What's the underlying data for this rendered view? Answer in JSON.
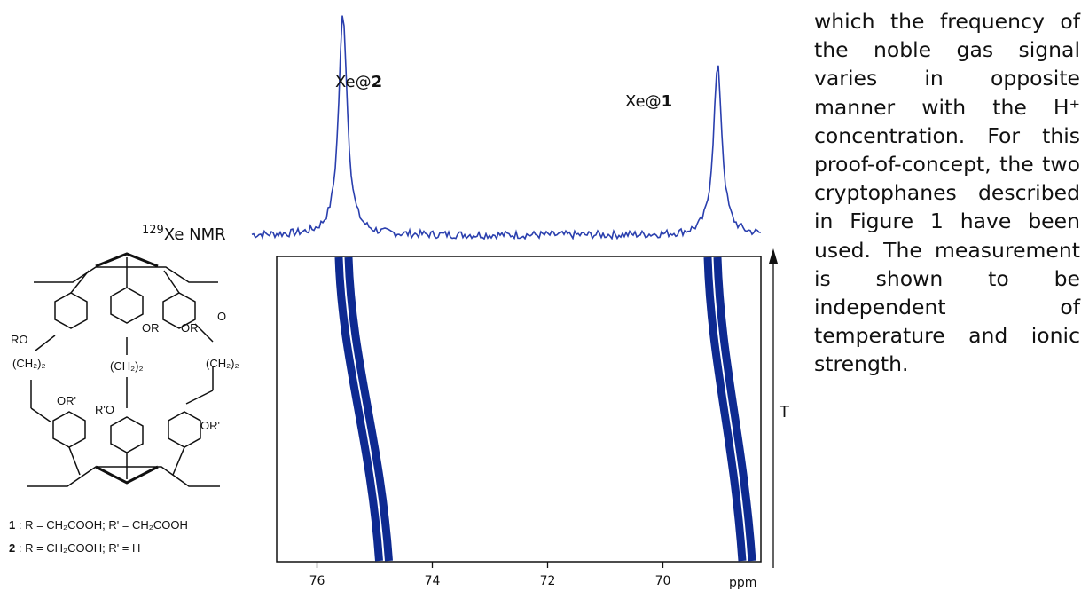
{
  "structure": {
    "r_label": "RO",
    "or_label": "OR",
    "r_prime_o_label": "R'O",
    "or_prime_label": "OR'",
    "ch2_label": "(CH₂)₂",
    "o_label": "O",
    "compound_1_num": "1",
    "compound_1_def": " : R = CH₂COOH; R' = CH₂COOH",
    "compound_2_num": "2",
    "compound_2_def": " : R = CH₂COOH; R' = H"
  },
  "spectrum": {
    "nmr_label_sup": "129",
    "nmr_label_main": "Xe NMR",
    "peak_1_prefix": "Xe@",
    "peak_1_num": "1",
    "peak_2_prefix": "Xe@",
    "peak_2_num": "2",
    "temperature_axis_label": "T",
    "x_unit": "ppm"
  },
  "chart_data": {
    "type": "line",
    "xlabel": "ppm",
    "ylabel": "T",
    "x_ticks": [
      76,
      74,
      72,
      70
    ],
    "xlim": [
      76.7,
      68.3
    ],
    "peaks": [
      {
        "name": "Xe@2",
        "ppm": 75.55,
        "relative_intensity": 1.0
      },
      {
        "name": "Xe@1",
        "ppm": 69.05,
        "relative_intensity": 0.76
      }
    ],
    "temperature_traces": [
      {
        "name": "Xe@2",
        "ppm_at_low_T": 75.5,
        "ppm_at_high_T": 74.8
      },
      {
        "name": "Xe@1",
        "ppm_at_low_T": 69.1,
        "ppm_at_high_T": 68.5
      }
    ],
    "colors": {
      "trace": "#2a3fae",
      "contour": "#0e2a91"
    }
  },
  "text": {
    "paragraph": "which the frequency of the noble gas signal varies in opposite manner with the H⁺ concentration. For this proof-of-concept, the two cryptophanes described in Figure 1 have been used. The measurement is shown to be independent of temperature and ionic strength."
  }
}
